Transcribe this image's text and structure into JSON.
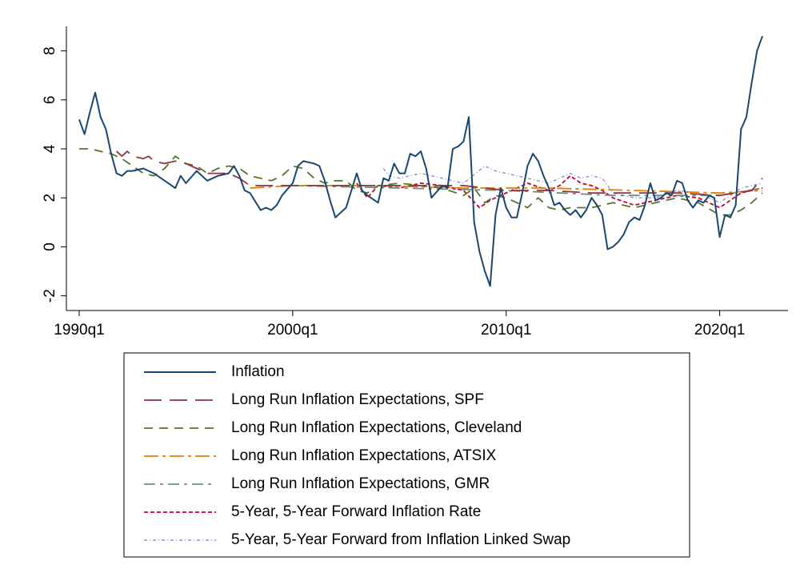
{
  "chart_data": {
    "type": "line",
    "xlim": [
      1989.4,
      2023.2
    ],
    "ylim": [
      -2.6,
      9.0
    ],
    "xticks": [
      {
        "value": 1990,
        "label": "1990q1"
      },
      {
        "value": 2000,
        "label": "2000q1"
      },
      {
        "value": 2010,
        "label": "2010q1"
      },
      {
        "value": 2020,
        "label": "2020q1"
      }
    ],
    "yticks": [
      -2,
      0,
      2,
      4,
      6,
      8
    ],
    "legend": "bottom",
    "series": [
      {
        "name": "Inflation",
        "color": "#1a476f",
        "x": [
          1990,
          1990.25,
          1990.5,
          1990.75,
          1991,
          1991.25,
          1991.5,
          1991.75,
          1992,
          1992.25,
          1992.5,
          1993,
          1993.5,
          1994,
          1994.5,
          1994.75,
          1995,
          1995.5,
          1996,
          1996.5,
          1997,
          1997.25,
          1997.5,
          1997.75,
          1998,
          1998.5,
          1998.75,
          1999,
          1999.25,
          1999.5,
          2000,
          2000.25,
          2000.5,
          2001,
          2001.25,
          2001.5,
          2001.75,
          2002,
          2002.25,
          2002.5,
          2003,
          2003.25,
          2003.5,
          2004,
          2004.25,
          2004.5,
          2004.75,
          2005,
          2005.25,
          2005.5,
          2005.75,
          2006,
          2006.25,
          2006.5,
          2007,
          2007.25,
          2007.5,
          2007.75,
          2008,
          2008.25,
          2008.5,
          2008.75,
          2009,
          2009.25,
          2009.5,
          2009.75,
          2010,
          2010.25,
          2010.5,
          2010.75,
          2011,
          2011.25,
          2011.5,
          2011.75,
          2012,
          2012.25,
          2012.5,
          2012.75,
          2013,
          2013.25,
          2013.5,
          2013.75,
          2014,
          2014.25,
          2014.5,
          2014.75,
          2015,
          2015.25,
          2015.5,
          2015.75,
          2016,
          2016.25,
          2016.5,
          2016.75,
          2017,
          2017.25,
          2017.5,
          2017.75,
          2018,
          2018.25,
          2018.5,
          2018.75,
          2019,
          2019.25,
          2019.5,
          2019.75,
          2020,
          2020.25,
          2020.5,
          2020.75,
          2021,
          2021.25,
          2021.5,
          2021.75,
          2022
        ],
        "values": [
          5.2,
          4.6,
          5.5,
          6.3,
          5.3,
          4.8,
          3.8,
          3.0,
          2.9,
          3.1,
          3.1,
          3.2,
          3.0,
          2.7,
          2.4,
          2.9,
          2.6,
          3.1,
          2.7,
          2.9,
          3.0,
          3.3,
          2.9,
          2.3,
          2.2,
          1.5,
          1.6,
          1.5,
          1.7,
          2.1,
          2.6,
          3.3,
          3.5,
          3.4,
          3.3,
          2.7,
          1.9,
          1.2,
          1.4,
          1.6,
          3.0,
          2.3,
          2.1,
          1.8,
          2.8,
          2.7,
          3.4,
          3.0,
          3.0,
          3.8,
          3.7,
          3.9,
          3.2,
          2.0,
          2.5,
          2.4,
          4.0,
          4.1,
          4.3,
          5.3,
          1.0,
          -0.2,
          -1.0,
          -1.6,
          1.3,
          2.4,
          1.6,
          1.2,
          1.2,
          2.2,
          3.3,
          3.8,
          3.5,
          2.9,
          2.4,
          1.7,
          1.8,
          1.5,
          1.3,
          1.5,
          1.2,
          1.5,
          2.0,
          1.7,
          1.3,
          -0.1,
          0.0,
          0.2,
          0.5,
          1.0,
          1.2,
          1.1,
          1.7,
          2.6,
          1.9,
          2.0,
          2.2,
          2.1,
          2.7,
          2.6,
          1.9,
          1.6,
          1.9,
          1.8,
          2.1,
          2.0,
          0.4,
          1.3,
          1.2,
          1.7,
          4.8,
          5.3,
          6.7,
          8.0,
          8.6
        ]
      },
      {
        "name": "Long Run Inflation Expectations, SPF",
        "color": "#90353b",
        "x": [
          1991.75,
          1992,
          1992.25,
          1992.5,
          1993,
          1993.25,
          1993.5,
          1994,
          1994.5,
          1995,
          1995.5,
          1996,
          1996.5,
          1997,
          1997.5,
          1998,
          1998.5,
          1999,
          2000,
          2002,
          2003,
          2005,
          2008,
          2010,
          2012,
          2014,
          2016,
          2018,
          2020,
          2021.5,
          2022
        ],
        "values": [
          3.9,
          3.7,
          3.9,
          3.7,
          3.6,
          3.7,
          3.5,
          3.4,
          3.5,
          3.4,
          3.2,
          3.0,
          3.0,
          3.0,
          2.8,
          2.5,
          2.5,
          2.5,
          2.5,
          2.5,
          2.5,
          2.5,
          2.5,
          2.3,
          2.3,
          2.2,
          2.2,
          2.2,
          2.1,
          2.3,
          2.8
        ]
      },
      {
        "name": "Long Run Inflation Expectations, Cleveland",
        "color": "#55752f",
        "x": [
          1990,
          1990.5,
          1991,
          1991.5,
          1992,
          1992.5,
          1993,
          1993.5,
          1994,
          1994.5,
          1995,
          1995.5,
          1996,
          1996.5,
          1997,
          1997.5,
          1998,
          1998.5,
          1999,
          1999.5,
          2000,
          2000.5,
          2001,
          2001.5,
          2002,
          2002.5,
          2003,
          2003.5,
          2004,
          2005,
          2006,
          2007,
          2008,
          2008.5,
          2009,
          2009.5,
          2010,
          2010.5,
          2011,
          2011.5,
          2012,
          2012.5,
          2013,
          2014,
          2015,
          2016,
          2017,
          2018,
          2019,
          2020,
          2020.5,
          2021,
          2021.5,
          2022
        ],
        "values": [
          4.0,
          4.0,
          3.9,
          3.8,
          3.6,
          3.3,
          3.0,
          2.9,
          3.2,
          3.7,
          3.4,
          3.3,
          3.0,
          3.2,
          3.3,
          3.2,
          2.9,
          2.8,
          2.7,
          2.9,
          3.3,
          3.2,
          2.8,
          2.6,
          2.7,
          2.7,
          2.3,
          2.2,
          2.5,
          2.6,
          2.5,
          2.4,
          2.1,
          2.4,
          1.8,
          2.1,
          2.0,
          1.8,
          1.6,
          2.0,
          1.6,
          1.5,
          1.6,
          1.6,
          1.8,
          1.6,
          1.8,
          2.0,
          1.8,
          1.3,
          1.3,
          1.5,
          1.8,
          2.2
        ]
      },
      {
        "name": "Long Run Inflation Expectations, ATSIX",
        "color": "#e37e00",
        "x": [
          1998,
          2000,
          2004,
          2008,
          2012,
          2016,
          2020,
          2022
        ],
        "values": [
          2.4,
          2.5,
          2.5,
          2.4,
          2.4,
          2.3,
          2.2,
          2.3
        ]
      },
      {
        "name": "Long Run Inflation Expectations, GMR",
        "color": "#6e8e84",
        "x": [
          2000,
          2005,
          2010,
          2015,
          2020,
          2022
        ],
        "values": [
          2.5,
          2.4,
          2.3,
          2.1,
          2.1,
          2.4
        ]
      },
      {
        "name": "5-Year, 5-Year Forward Inflation Rate",
        "color": "#c10534",
        "x": [
          2003,
          2003.5,
          2004,
          2005,
          2006,
          2007,
          2008,
          2008.75,
          2009.25,
          2010,
          2011,
          2012,
          2012.5,
          2013,
          2013.5,
          2014,
          2014.5,
          2015,
          2016,
          2017,
          2018,
          2019,
          2020,
          2020.5,
          2021,
          2021.5,
          2022
        ],
        "values": [
          2.6,
          2.0,
          2.5,
          2.4,
          2.6,
          2.5,
          2.3,
          1.6,
          1.9,
          2.2,
          2.6,
          2.3,
          2.5,
          2.9,
          2.6,
          2.5,
          2.3,
          2.0,
          1.7,
          1.9,
          2.1,
          2.0,
          1.6,
          1.9,
          2.2,
          2.3,
          2.4
        ]
      },
      {
        "name": "5-Year, 5-Year Forward from Inflation Linked Swap",
        "color": "#938dd2",
        "x": [
          2004.25,
          2004.5,
          2005,
          2006,
          2007,
          2008,
          2009,
          2009.5,
          2010,
          2011,
          2012,
          2012.5,
          2013,
          2013.5,
          2014,
          2014.5,
          2015,
          2016,
          2017,
          2018,
          2019,
          2020,
          2021,
          2022
        ],
        "values": [
          3.2,
          2.9,
          2.8,
          3.0,
          2.8,
          2.6,
          3.3,
          3.1,
          3.0,
          2.8,
          2.6,
          2.8,
          3.0,
          2.8,
          2.9,
          2.8,
          2.2,
          2.0,
          2.0,
          2.3,
          2.2,
          1.8,
          2.4,
          2.6
        ]
      }
    ]
  }
}
